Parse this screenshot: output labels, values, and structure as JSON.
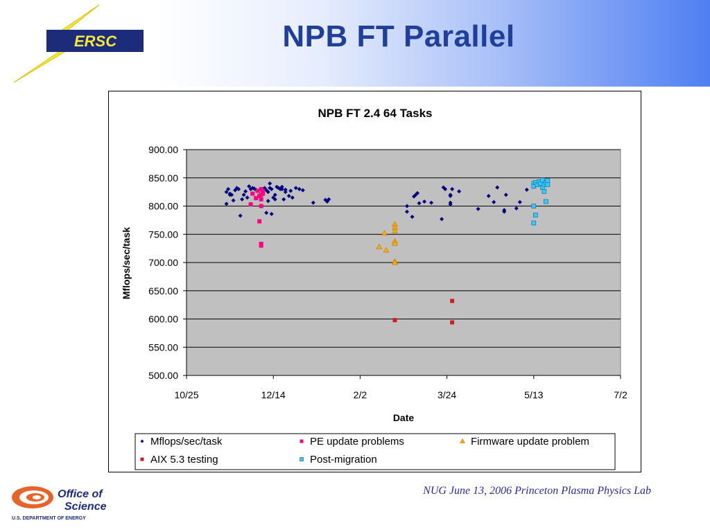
{
  "slide": {
    "title": "NPB FT Parallel",
    "footer": "NUG June 13, 2006 Princeton Plasma Physics Lab",
    "logo_top_text": "ERSC",
    "logo_bottom_line1": "Office of",
    "logo_bottom_line2": "Science",
    "logo_bottom_line3": "U.S. DEPARTMENT OF ENERGY"
  },
  "colors": {
    "title": "#1f3f9a",
    "plot_bg": "#c0c0c0",
    "header_gradient_end": "#4e7ff2"
  },
  "chart_data": {
    "type": "scatter",
    "title": "NPB FT 2.4 64 Tasks",
    "xlabel": "Date",
    "ylabel": "Mflops/sec/task",
    "xlim": [
      "10/25",
      "7/2"
    ],
    "x_ticks": [
      "10/25",
      "12/14",
      "2/2",
      "3/24",
      "5/13",
      "7/2"
    ],
    "ylim": [
      500,
      900
    ],
    "y_ticks": [
      "500.00",
      "550.00",
      "600.00",
      "650.00",
      "700.00",
      "750.00",
      "800.00",
      "850.00",
      "900.00"
    ],
    "grid": "horizontal",
    "legend_position": "bottom",
    "series": [
      {
        "name": "Mflops/sec/task",
        "color": "#000080",
        "marker": "diamond",
        "points": [
          [
            "11/17",
            804
          ],
          [
            "11/17",
            825
          ],
          [
            "11/18",
            830
          ],
          [
            "11/19",
            820
          ],
          [
            "11/19",
            822
          ],
          [
            "11/20",
            820
          ],
          [
            "11/21",
            810
          ],
          [
            "11/22",
            828
          ],
          [
            "11/23",
            832
          ],
          [
            "11/24",
            830
          ],
          [
            "11/25",
            783
          ],
          [
            "11/26",
            812
          ],
          [
            "11/27",
            820
          ],
          [
            "11/28",
            826
          ],
          [
            "11/29",
            815
          ],
          [
            "11/30",
            835
          ],
          [
            "12/1",
            830
          ],
          [
            "12/2",
            832
          ],
          [
            "12/3",
            831
          ],
          [
            "12/4",
            829
          ],
          [
            "12/9",
            832
          ],
          [
            "12/10",
            788
          ],
          [
            "12/10",
            828
          ],
          [
            "12/11",
            809
          ],
          [
            "12/11",
            825
          ],
          [
            "12/12",
            840
          ],
          [
            "12/12",
            832
          ],
          [
            "12/13",
            830
          ],
          [
            "12/13",
            786
          ],
          [
            "12/14",
            815
          ],
          [
            "12/15",
            820
          ],
          [
            "12/15",
            812
          ],
          [
            "12/16",
            834
          ],
          [
            "12/17",
            832
          ],
          [
            "12/18",
            830
          ],
          [
            "12/19",
            834
          ],
          [
            "12/19",
            830
          ],
          [
            "12/20",
            812
          ],
          [
            "12/21",
            825
          ],
          [
            "12/21",
            829
          ],
          [
            "12/23",
            818
          ],
          [
            "12/24",
            827
          ],
          [
            "12/25",
            815
          ],
          [
            "12/27",
            832
          ],
          [
            "12/29",
            830
          ],
          [
            "12/31",
            828
          ],
          [
            "1/6",
            806
          ],
          [
            "1/13",
            811
          ],
          [
            "1/14",
            808
          ],
          [
            "1/15",
            812
          ],
          [
            "2/29",
            790
          ],
          [
            "3/1",
            800
          ],
          [
            "3/4",
            781
          ],
          [
            "3/5",
            817
          ],
          [
            "3/6",
            820
          ],
          [
            "3/7",
            823
          ],
          [
            "3/8",
            805
          ],
          [
            "3/11",
            808
          ],
          [
            "3/15",
            806
          ],
          [
            "3/22",
            833
          ],
          [
            "3/21",
            777
          ],
          [
            "3/23",
            830
          ],
          [
            "3/26",
            820
          ],
          [
            "3/26",
            818
          ],
          [
            "3/26",
            806
          ],
          [
            "3/26",
            803
          ],
          [
            "3/27",
            830
          ],
          [
            "3/31",
            826
          ],
          [
            "4/11",
            795
          ],
          [
            "4/17",
            818
          ],
          [
            "4/20",
            807
          ],
          [
            "4/22",
            833
          ],
          [
            "4/26",
            793
          ],
          [
            "4/26",
            790
          ],
          [
            "4/27",
            820
          ],
          [
            "5/3",
            796
          ],
          [
            "5/5",
            807
          ],
          [
            "5/9",
            829
          ]
        ]
      },
      {
        "name": "PE update problems",
        "color": "#ff0080",
        "marker": "square",
        "points": [
          [
            "12/1",
            803
          ],
          [
            "12/2",
            822
          ],
          [
            "12/4",
            814
          ],
          [
            "12/5",
            827
          ],
          [
            "12/6",
            818
          ],
          [
            "12/6",
            773
          ],
          [
            "12/7",
            830
          ],
          [
            "12/7",
            820
          ],
          [
            "12/7",
            812
          ],
          [
            "12/7",
            800
          ],
          [
            "12/7",
            733
          ],
          [
            "12/7",
            730
          ],
          [
            "12/8",
            826
          ],
          [
            "12/8",
            822
          ]
        ]
      },
      {
        "name": "Firmware update problem",
        "color": "#ffaa00",
        "marker": "triangle",
        "points": [
          [
            "2/13",
            728
          ],
          [
            "2/16",
            752
          ],
          [
            "2/17",
            722
          ],
          [
            "2/22",
            768
          ],
          [
            "2/22",
            762
          ],
          [
            "2/22",
            756
          ],
          [
            "2/22",
            738
          ],
          [
            "2/22",
            734
          ],
          [
            "2/22",
            702
          ],
          [
            "2/22",
            700
          ]
        ]
      },
      {
        "name": "AIX 5.3 testing",
        "color": "#cc2020",
        "marker": "square",
        "points": [
          [
            "2/22",
            598
          ],
          [
            "3/27",
            632
          ],
          [
            "3/27",
            594
          ]
        ]
      },
      {
        "name": "Post-migration",
        "color": "#33ccff",
        "marker": "square",
        "points": [
          [
            "5/13",
            840
          ],
          [
            "5/13",
            835
          ],
          [
            "5/14",
            842
          ],
          [
            "5/15",
            838
          ],
          [
            "5/16",
            843
          ],
          [
            "5/17",
            840
          ],
          [
            "5/18",
            846
          ],
          [
            "5/18",
            833
          ],
          [
            "5/19",
            838
          ],
          [
            "5/19",
            826
          ],
          [
            "5/20",
            842
          ],
          [
            "5/20",
            808
          ],
          [
            "5/21",
            845
          ],
          [
            "5/21",
            838
          ],
          [
            "5/13",
            800
          ],
          [
            "5/14",
            784
          ],
          [
            "5/13",
            770
          ]
        ]
      }
    ]
  }
}
